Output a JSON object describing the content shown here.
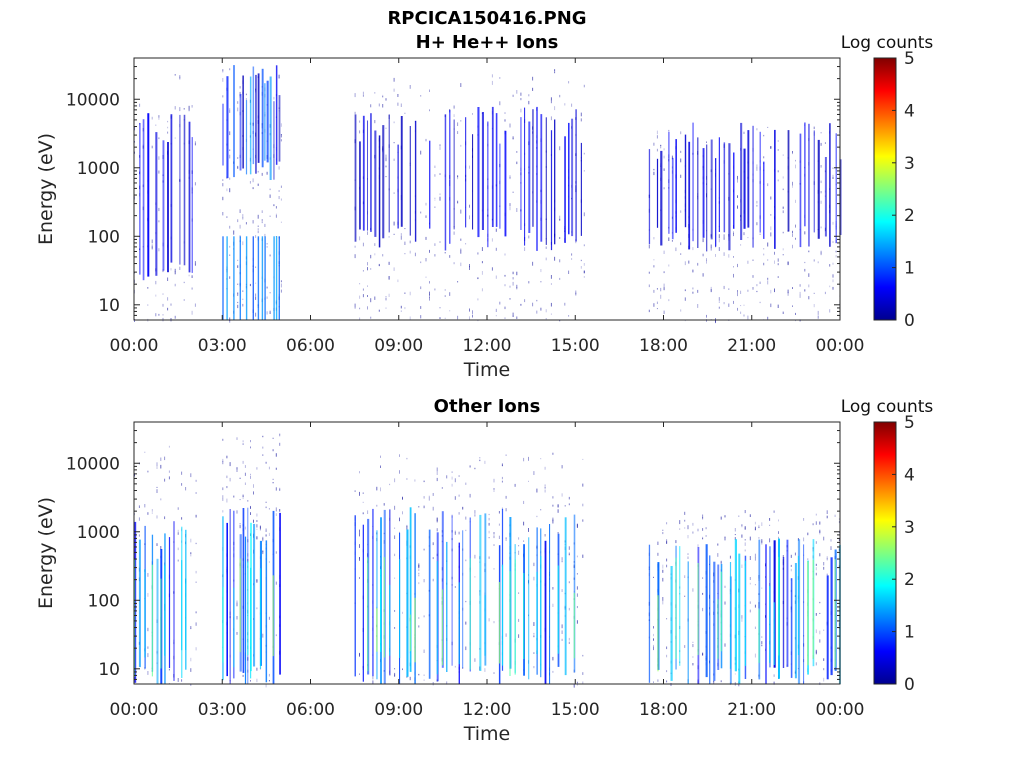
{
  "figure": {
    "title_line1": "RPCICA150416.PNG"
  },
  "chart_data": [
    {
      "type": "heatmap",
      "title": "H+ He++ Ions",
      "xlabel": "Time",
      "ylabel": "Energy (eV)",
      "x_ticks": [
        "00:00",
        "03:00",
        "06:00",
        "09:00",
        "12:00",
        "15:00",
        "18:00",
        "21:00",
        "00:00"
      ],
      "xlim_hours": [
        0,
        24
      ],
      "y_scale": "log",
      "y_ticks": [
        10,
        100,
        1000,
        10000
      ],
      "y_tick_labels": [
        "10",
        "100",
        "1000",
        "10000"
      ],
      "ylim": [
        6,
        40000
      ],
      "colorbar": {
        "title": "Log counts",
        "range": [
          0,
          5
        ],
        "ticks": [
          "0",
          "1",
          "2",
          "3",
          "4",
          "5"
        ],
        "colormap": "jet"
      },
      "activity_segments": [
        {
          "start_hour": 0.0,
          "end_hour": 2.1,
          "intensity": "low",
          "max_energy": 30000,
          "strong_energy": [
            30,
            5000
          ]
        },
        {
          "start_hour": 3.0,
          "end_hour": 5.0,
          "intensity": "high",
          "max_energy": 40000,
          "strong_energy": [
            1000,
            20000
          ]
        },
        {
          "start_hour": 7.5,
          "end_hour": 15.3,
          "intensity": "low",
          "max_energy": 30000,
          "strong_energy": [
            100,
            5000
          ]
        },
        {
          "start_hour": 17.5,
          "end_hour": 24.0,
          "intensity": "low",
          "max_energy": 5000,
          "strong_energy": [
            100,
            3000
          ]
        }
      ]
    },
    {
      "type": "heatmap",
      "title": "Other Ions",
      "xlabel": "Time",
      "ylabel": "Energy (eV)",
      "x_ticks": [
        "00:00",
        "03:00",
        "06:00",
        "09:00",
        "12:00",
        "15:00",
        "18:00",
        "21:00",
        "00:00"
      ],
      "xlim_hours": [
        0,
        24
      ],
      "y_scale": "log",
      "y_ticks": [
        10,
        100,
        1000,
        10000
      ],
      "y_tick_labels": [
        "10",
        "100",
        "1000",
        "10000"
      ],
      "ylim": [
        6,
        40000
      ],
      "colorbar": {
        "title": "Log counts",
        "range": [
          0,
          5
        ],
        "ticks": [
          "0",
          "1",
          "2",
          "3",
          "4",
          "5"
        ],
        "colormap": "jet"
      },
      "activity_segments": [
        {
          "start_hour": 0.0,
          "end_hour": 2.1,
          "intensity": "medium",
          "max_energy": 20000,
          "strong_energy": [
            8,
            1000
          ]
        },
        {
          "start_hour": 3.0,
          "end_hour": 5.0,
          "intensity": "high",
          "max_energy": 40000,
          "strong_energy": [
            8,
            1500
          ]
        },
        {
          "start_hour": 7.5,
          "end_hour": 15.3,
          "intensity": "medium",
          "max_energy": 20000,
          "strong_energy": [
            8,
            1500
          ]
        },
        {
          "start_hour": 17.5,
          "end_hour": 24.0,
          "intensity": "medium",
          "max_energy": 3000,
          "strong_energy": [
            8,
            500
          ]
        }
      ]
    }
  ]
}
